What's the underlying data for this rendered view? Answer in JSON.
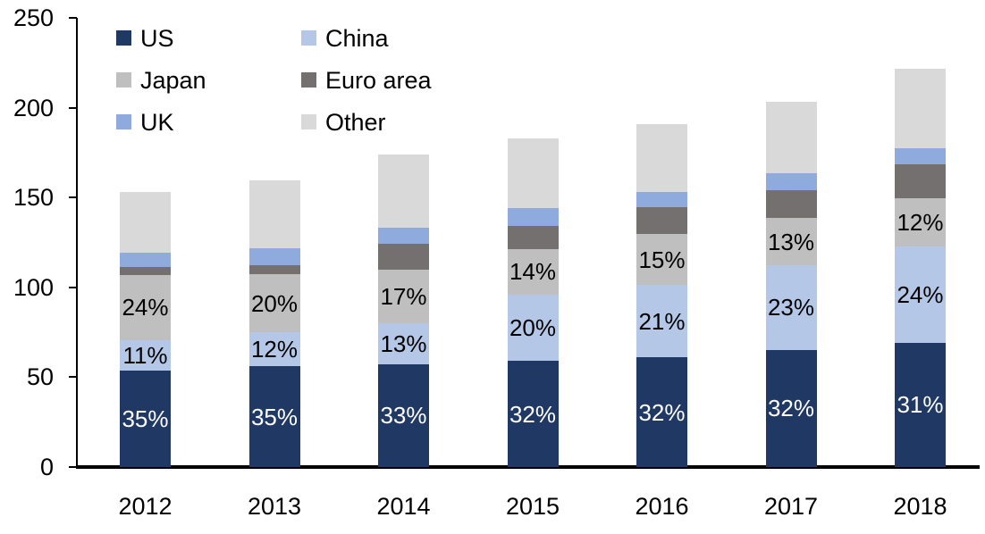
{
  "chart_data": {
    "type": "bar",
    "subtype": "stacked-vertical",
    "title": "",
    "xlabel": "",
    "ylabel": "",
    "categories": [
      "2012",
      "2013",
      "2014",
      "2015",
      "2016",
      "2017",
      "2018"
    ],
    "y_axis": {
      "min": 0,
      "max": 250,
      "ticks": [
        0,
        50,
        100,
        150,
        200,
        250
      ]
    },
    "grid": false,
    "legend_position": "top-left",
    "legend_columns": [
      [
        "US",
        "Japan",
        "UK"
      ],
      [
        "China",
        "Euro area",
        "Other"
      ]
    ],
    "series": [
      {
        "name": "US",
        "color": "#1F3864",
        "values": [
          53.6,
          56.0,
          57.4,
          58.9,
          61.1,
          65.3,
          69.1
        ],
        "labels": [
          "35%",
          "35%",
          "33%",
          "32%",
          "32%",
          "32%",
          "31%"
        ],
        "label_color": "#FFFFFF"
      },
      {
        "name": "China",
        "color": "#B4C7E7",
        "values": [
          16.8,
          19.2,
          22.6,
          36.8,
          40.1,
          46.9,
          53.5
        ],
        "labels": [
          "11%",
          "12%",
          "13%",
          "20%",
          "21%",
          "23%",
          "24%"
        ],
        "label_color": "#000000"
      },
      {
        "name": "Japan",
        "color": "#BFBFBF",
        "values": [
          36.7,
          32.0,
          29.6,
          25.8,
          28.7,
          26.5,
          26.8
        ],
        "labels": [
          "24%",
          "20%",
          "17%",
          "14%",
          "15%",
          "13%",
          "12%"
        ],
        "label_color": "#000000"
      },
      {
        "name": "Euro area",
        "color": "#757070",
        "values": [
          4.0,
          5.0,
          14.9,
          12.9,
          14.9,
          15.4,
          18.9
        ]
      },
      {
        "name": "UK",
        "color": "#8FAADC",
        "values": [
          8.4,
          9.4,
          8.9,
          9.9,
          8.4,
          9.4,
          8.9
        ]
      },
      {
        "name": "Other",
        "color": "#D9D9D9",
        "values": [
          33.8,
          37.8,
          40.8,
          38.8,
          37.8,
          39.8,
          44.5
        ]
      }
    ],
    "totals_approx": [
      153,
      160,
      174,
      184,
      191,
      204,
      222
    ],
    "axis_color": "#000000",
    "background_color": "#FFFFFF"
  }
}
